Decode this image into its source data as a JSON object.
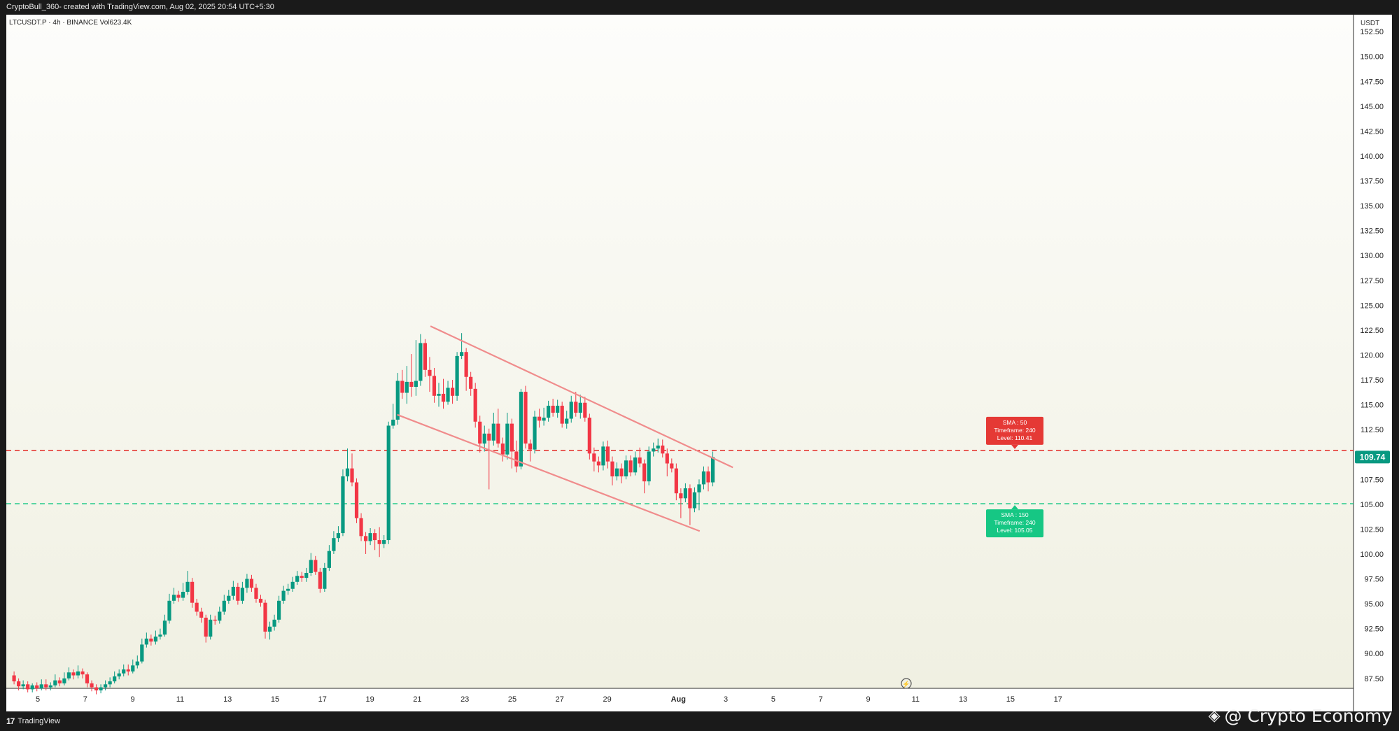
{
  "header": {
    "attribution": "CryptoBull_360- created with TradingView.com, Aug 02, 2025 20:54 UTC+5:30",
    "symbol_line": "LTCUSDT.P · 4h · BINANCE  Vol623.4K"
  },
  "footer": {
    "brand": "TradingView",
    "watermark": "@ Crypto Economy"
  },
  "colors": {
    "bullish": "#089981",
    "bearish": "#f23645",
    "channel": "#f08c8c",
    "sma50": "#e53935",
    "sma150": "#16c784",
    "price_tag": "#089981",
    "background": "#f4f4ec"
  },
  "chart_data": {
    "type": "candlestick",
    "symbol": "LTCUSDT.P",
    "timeframe": "4h",
    "exchange": "BINANCE",
    "currency": "USDT",
    "ylim": [
      86.5,
      154.2
    ],
    "y_ticks": [
      87.5,
      90.0,
      92.5,
      95.0,
      97.5,
      100.0,
      102.5,
      105.0,
      107.5,
      110.0,
      112.5,
      115.0,
      117.5,
      120.0,
      122.5,
      125.0,
      127.5,
      130.0,
      132.5,
      135.0,
      137.5,
      140.0,
      142.5,
      145.0,
      147.5,
      150.0,
      152.5
    ],
    "x_ticks": [
      {
        "label": "5",
        "day": 5
      },
      {
        "label": "7",
        "day": 7
      },
      {
        "label": "9",
        "day": 9
      },
      {
        "label": "11",
        "day": 11
      },
      {
        "label": "13",
        "day": 13
      },
      {
        "label": "15",
        "day": 15
      },
      {
        "label": "17",
        "day": 17
      },
      {
        "label": "19",
        "day": 19
      },
      {
        "label": "21",
        "day": 21
      },
      {
        "label": "23",
        "day": 23
      },
      {
        "label": "25",
        "day": 25
      },
      {
        "label": "27",
        "day": 27
      },
      {
        "label": "29",
        "day": 29
      },
      {
        "label": "Aug",
        "day": 32,
        "bold": true
      },
      {
        "label": "3",
        "day": 34
      },
      {
        "label": "5",
        "day": 36
      },
      {
        "label": "7",
        "day": 38
      },
      {
        "label": "9",
        "day": 40
      },
      {
        "label": "11",
        "day": 42
      },
      {
        "label": "13",
        "day": 44
      },
      {
        "label": "15",
        "day": 46
      },
      {
        "label": "17",
        "day": 48
      }
    ],
    "last_price": "109.74",
    "last_price_value": 109.74,
    "candles": [
      [
        87.8,
        87.2,
        88.2,
        86.9
      ],
      [
        87.2,
        86.7,
        87.5,
        86.3
      ],
      [
        86.7,
        86.9,
        87.3,
        86.4
      ],
      [
        86.9,
        86.4,
        87.2,
        86.1
      ],
      [
        86.4,
        86.8,
        87.0,
        86.1
      ],
      [
        86.8,
        86.5,
        87.1,
        86.2
      ],
      [
        86.5,
        86.9,
        87.4,
        86.3
      ],
      [
        86.9,
        86.6,
        87.4,
        86.3
      ],
      [
        86.6,
        86.8,
        87.1,
        86.3
      ],
      [
        86.8,
        87.3,
        87.9,
        86.6
      ],
      [
        87.3,
        87.0,
        87.6,
        86.7
      ],
      [
        87.0,
        87.5,
        88.1,
        86.8
      ],
      [
        87.5,
        88.1,
        88.6,
        87.3
      ],
      [
        88.1,
        87.8,
        88.4,
        87.4
      ],
      [
        87.8,
        88.2,
        88.8,
        87.5
      ],
      [
        88.2,
        87.9,
        88.5,
        87.5
      ],
      [
        87.9,
        87.0,
        88.1,
        86.6
      ],
      [
        87.0,
        86.6,
        87.3,
        86.2
      ],
      [
        86.6,
        86.3,
        86.9,
        85.9
      ],
      [
        86.3,
        86.6,
        86.9,
        86.0
      ],
      [
        86.6,
        86.9,
        87.3,
        86.3
      ],
      [
        86.9,
        87.2,
        87.6,
        86.6
      ],
      [
        87.2,
        87.7,
        88.2,
        87.0
      ],
      [
        87.7,
        88.0,
        88.4,
        87.4
      ],
      [
        88.0,
        88.4,
        88.9,
        87.7
      ],
      [
        88.4,
        88.2,
        88.9,
        87.8
      ],
      [
        88.2,
        88.8,
        89.4,
        88.0
      ],
      [
        88.8,
        89.2,
        89.8,
        88.5
      ],
      [
        89.2,
        90.9,
        91.5,
        89.0
      ],
      [
        90.9,
        91.5,
        92.1,
        90.6
      ],
      [
        91.5,
        91.2,
        91.9,
        90.8
      ],
      [
        91.2,
        91.7,
        92.3,
        90.9
      ],
      [
        91.7,
        91.9,
        92.5,
        91.4
      ],
      [
        91.9,
        93.3,
        93.9,
        91.7
      ],
      [
        93.3,
        95.3,
        96.0,
        93.0
      ],
      [
        95.3,
        95.9,
        96.6,
        95.0
      ],
      [
        95.9,
        95.6,
        96.3,
        95.2
      ],
      [
        95.6,
        96.2,
        97.1,
        95.3
      ],
      [
        96.2,
        97.2,
        98.3,
        95.9
      ],
      [
        97.2,
        95.1,
        97.6,
        94.6
      ],
      [
        95.1,
        94.2,
        95.5,
        93.8
      ],
      [
        94.2,
        93.6,
        94.6,
        93.1
      ],
      [
        93.6,
        91.7,
        93.9,
        91.1
      ],
      [
        91.7,
        93.4,
        93.9,
        91.4
      ],
      [
        93.4,
        93.3,
        93.8,
        92.9
      ],
      [
        93.3,
        94.2,
        94.7,
        93.0
      ],
      [
        94.2,
        95.3,
        95.9,
        93.9
      ],
      [
        95.3,
        95.8,
        96.4,
        95.0
      ],
      [
        95.8,
        96.7,
        97.3,
        95.4
      ],
      [
        96.7,
        95.3,
        97.1,
        94.9
      ],
      [
        95.3,
        96.6,
        97.2,
        95.0
      ],
      [
        96.6,
        97.5,
        98.0,
        96.1
      ],
      [
        97.5,
        96.6,
        97.9,
        96.2
      ],
      [
        96.6,
        95.5,
        97.0,
        95.1
      ],
      [
        95.5,
        95.1,
        95.9,
        94.7
      ],
      [
        95.1,
        92.2,
        95.4,
        91.5
      ],
      [
        92.2,
        92.7,
        93.2,
        91.4
      ],
      [
        92.7,
        93.4,
        93.9,
        92.3
      ],
      [
        93.4,
        95.3,
        95.8,
        93.1
      ],
      [
        95.3,
        96.3,
        96.8,
        95.0
      ],
      [
        96.3,
        96.5,
        97.0,
        95.9
      ],
      [
        96.5,
        97.2,
        97.7,
        96.2
      ],
      [
        97.2,
        97.8,
        98.3,
        96.9
      ],
      [
        97.8,
        97.6,
        98.2,
        97.2
      ],
      [
        97.6,
        98.1,
        98.6,
        97.2
      ],
      [
        98.1,
        99.4,
        100.1,
        97.8
      ],
      [
        99.4,
        98.2,
        99.8,
        97.9
      ],
      [
        98.2,
        96.5,
        98.6,
        96.1
      ],
      [
        96.5,
        98.6,
        99.1,
        96.2
      ],
      [
        98.6,
        100.3,
        100.9,
        98.3
      ],
      [
        100.3,
        101.6,
        102.3,
        100.0
      ],
      [
        101.6,
        102.1,
        102.8,
        101.2
      ],
      [
        102.1,
        107.8,
        108.5,
        101.8
      ],
      [
        107.8,
        108.6,
        110.6,
        107.3
      ],
      [
        108.6,
        107.2,
        110.1,
        106.8
      ],
      [
        107.2,
        103.6,
        107.6,
        103.1
      ],
      [
        103.6,
        101.8,
        104.1,
        101.3
      ],
      [
        101.8,
        101.3,
        102.2,
        100.0
      ],
      [
        101.3,
        102.1,
        102.6,
        100.9
      ],
      [
        102.1,
        101.4,
        102.5,
        100.4
      ],
      [
        101.4,
        101.0,
        102.7,
        99.7
      ],
      [
        101.0,
        101.4,
        101.9,
        100.6
      ],
      [
        101.4,
        112.9,
        113.3,
        101.0
      ],
      [
        112.9,
        113.5,
        115.1,
        112.6
      ],
      [
        113.5,
        117.4,
        118.2,
        113.0
      ],
      [
        117.4,
        116.2,
        118.5,
        115.6
      ],
      [
        116.2,
        117.3,
        118.9,
        115.1
      ],
      [
        117.3,
        116.8,
        120.1,
        115.8
      ],
      [
        116.8,
        117.4,
        121.5,
        115.9
      ],
      [
        117.4,
        121.2,
        122.1,
        116.9
      ],
      [
        121.2,
        118.5,
        121.6,
        117.8
      ],
      [
        118.5,
        117.9,
        119.8,
        116.3
      ],
      [
        117.9,
        115.9,
        118.7,
        115.2
      ],
      [
        115.9,
        116.1,
        117.2,
        114.8
      ],
      [
        116.1,
        115.3,
        117.6,
        114.6
      ],
      [
        115.3,
        116.7,
        117.4,
        115.0
      ],
      [
        116.7,
        115.9,
        117.5,
        115.1
      ],
      [
        115.9,
        119.9,
        120.3,
        115.4
      ],
      [
        119.9,
        120.3,
        122.2,
        119.6
      ],
      [
        120.3,
        117.8,
        120.7,
        116.4
      ],
      [
        117.8,
        116.6,
        118.3,
        115.9
      ],
      [
        116.6,
        113.3,
        117.2,
        112.7
      ],
      [
        113.3,
        111.1,
        113.9,
        110.2
      ],
      [
        111.1,
        112.1,
        112.9,
        110.3
      ],
      [
        112.1,
        111.4,
        112.6,
        106.5
      ],
      [
        111.4,
        113.1,
        114.2,
        110.9
      ],
      [
        113.1,
        111.1,
        114.6,
        110.7
      ],
      [
        111.1,
        110.0,
        111.7,
        109.3
      ],
      [
        110.0,
        113.1,
        114.2,
        109.5
      ],
      [
        113.1,
        110.3,
        113.6,
        108.6
      ],
      [
        110.3,
        108.8,
        111.4,
        108.2
      ],
      [
        108.8,
        116.3,
        116.6,
        108.5
      ],
      [
        116.3,
        111.1,
        116.9,
        110.6
      ],
      [
        111.1,
        110.5,
        111.5,
        109.3
      ],
      [
        110.5,
        113.8,
        114.4,
        110.1
      ],
      [
        113.8,
        113.4,
        114.6,
        112.7
      ],
      [
        113.4,
        113.7,
        114.7,
        112.9
      ],
      [
        113.7,
        114.9,
        115.4,
        113.3
      ],
      [
        114.9,
        114.2,
        115.6,
        113.8
      ],
      [
        114.2,
        114.9,
        115.5,
        113.7
      ],
      [
        114.9,
        113.1,
        115.3,
        112.7
      ],
      [
        113.1,
        113.6,
        114.4,
        112.6
      ],
      [
        113.6,
        115.3,
        115.9,
        113.2
      ],
      [
        115.3,
        114.2,
        116.3,
        113.8
      ],
      [
        114.2,
        115.2,
        116.0,
        113.6
      ],
      [
        115.2,
        113.7,
        115.8,
        113.3
      ],
      [
        113.7,
        110.1,
        114.1,
        109.5
      ],
      [
        110.1,
        109.3,
        110.7,
        108.3
      ],
      [
        109.3,
        108.9,
        109.8,
        108.2
      ],
      [
        108.9,
        110.8,
        111.3,
        108.4
      ],
      [
        110.8,
        109.3,
        111.4,
        108.6
      ],
      [
        109.3,
        107.8,
        109.8,
        106.9
      ],
      [
        107.8,
        108.6,
        109.2,
        107.4
      ],
      [
        108.6,
        107.8,
        109.1,
        107.1
      ],
      [
        107.8,
        109.4,
        109.9,
        107.5
      ],
      [
        109.4,
        108.2,
        109.9,
        107.8
      ],
      [
        108.2,
        109.7,
        110.3,
        107.9
      ],
      [
        109.7,
        109.1,
        110.7,
        108.7
      ],
      [
        109.1,
        107.3,
        109.5,
        106.1
      ],
      [
        107.3,
        110.3,
        110.8,
        106.9
      ],
      [
        110.3,
        110.6,
        111.2,
        109.8
      ],
      [
        110.6,
        110.9,
        111.6,
        110.2
      ],
      [
        110.9,
        110.1,
        111.5,
        109.7
      ],
      [
        110.1,
        109.1,
        110.6,
        107.8
      ],
      [
        109.1,
        108.6,
        109.6,
        108.2
      ],
      [
        108.6,
        106.1,
        109.1,
        105.4
      ],
      [
        106.1,
        105.6,
        106.6,
        103.6
      ],
      [
        105.6,
        106.6,
        107.1,
        105.2
      ],
      [
        106.6,
        104.6,
        107.0,
        102.9
      ],
      [
        104.6,
        106.2,
        106.7,
        104.2
      ],
      [
        106.2,
        107.0,
        107.5,
        104.4
      ],
      [
        107.0,
        108.3,
        108.8,
        106.5
      ],
      [
        108.3,
        107.2,
        108.8,
        106.3
      ],
      [
        107.2,
        109.74,
        110.3,
        106.8
      ]
    ],
    "candle_day_mapping": {
      "first_day": 4.0,
      "day_step": 0.1925
    },
    "channel_lines": [
      {
        "name": "channel-upper",
        "start": {
          "day": 21.55,
          "price": 122.9
        },
        "end": {
          "day": 34.3,
          "price": 108.7
        }
      },
      {
        "name": "channel-lower",
        "start": {
          "day": 20.15,
          "price": 114.0
        },
        "end": {
          "day": 32.9,
          "price": 102.3
        }
      }
    ],
    "levels": [
      {
        "name": "sma-50",
        "value": 110.41,
        "color": "#e53935",
        "label": [
          "SMA : 50",
          "Timeframe: 240",
          "Level: 110.41"
        ]
      },
      {
        "name": "sma-150",
        "value": 105.05,
        "color": "#16c784",
        "label": [
          "SMA : 150",
          "Timeframe: 240",
          "Level: 105.05"
        ]
      }
    ]
  }
}
